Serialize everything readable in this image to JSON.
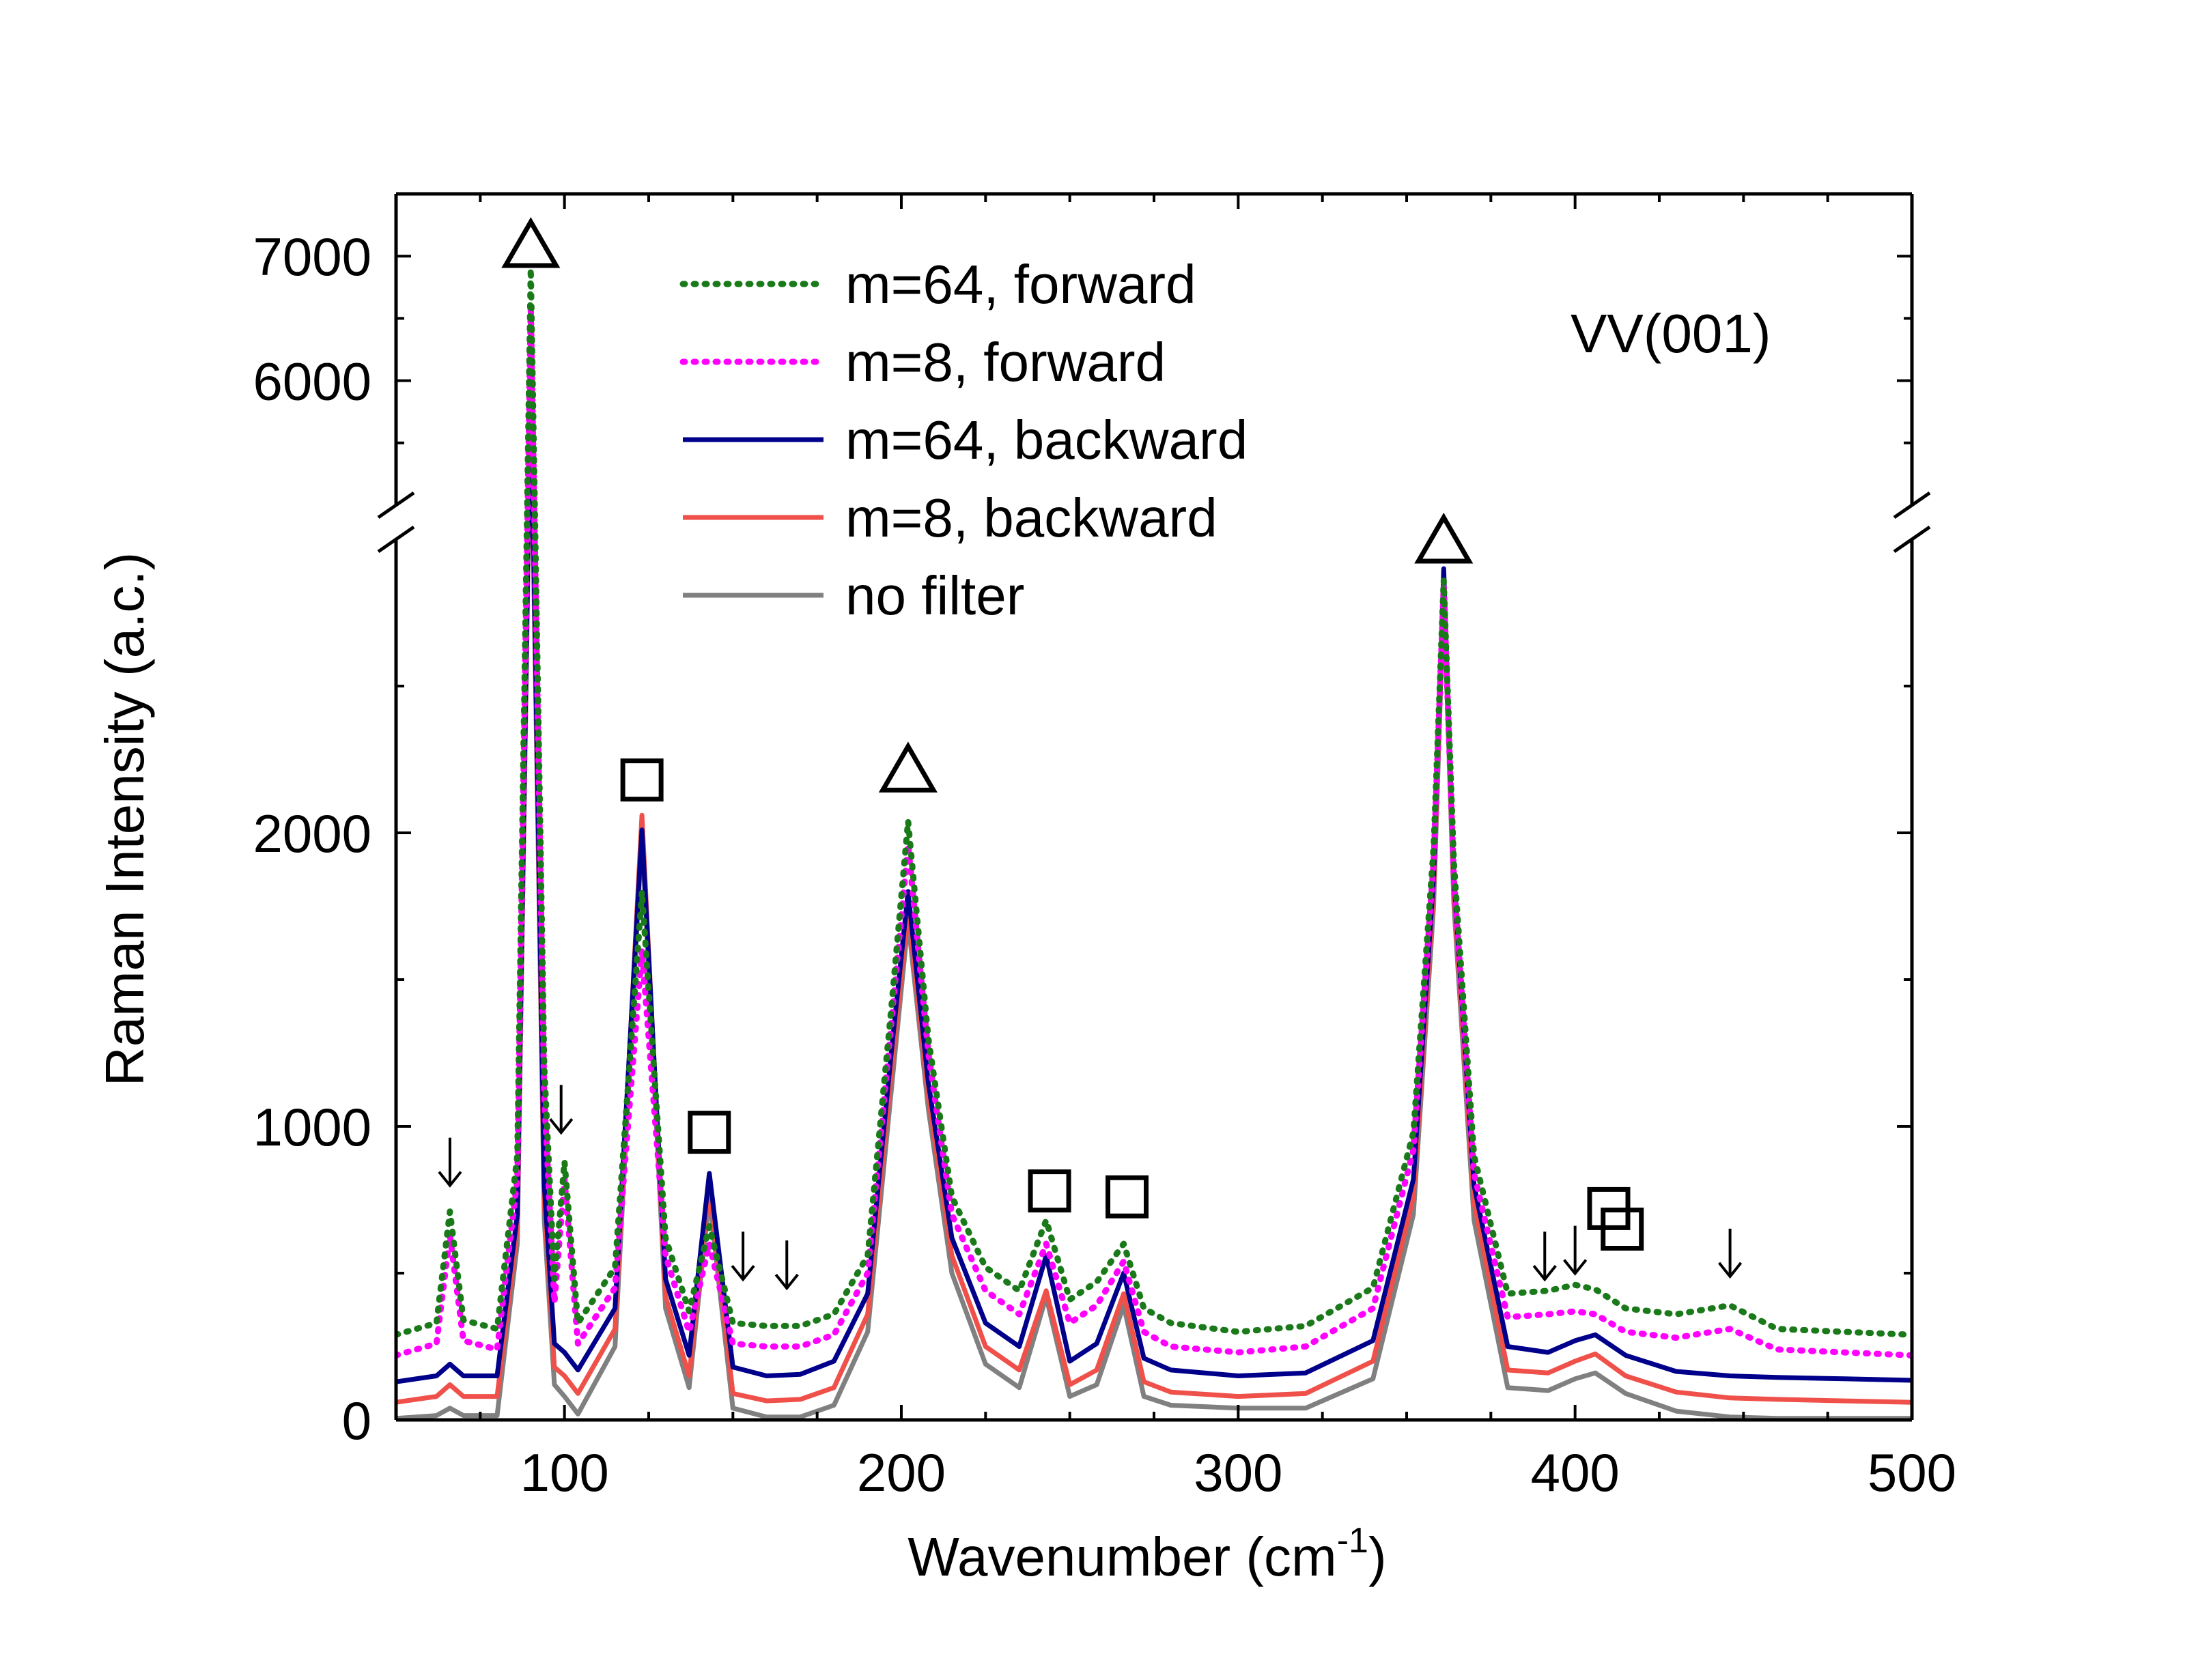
{
  "chart_data": {
    "type": "line",
    "title": "",
    "panel_label": "VV(001)",
    "xlabel": "Wavenumber (cm",
    "xlabel_sup": "-1",
    "xlabel_end": ")",
    "ylabel": "Raman Intensity (a.c.)",
    "xlim": [
      50,
      500
    ],
    "ylim_lower": [
      0,
      3000
    ],
    "ylim_upper": [
      5000,
      7500
    ],
    "axis_break": "between 3000 and 5000",
    "x_ticks": [
      "100",
      "200",
      "300",
      "400",
      "500"
    ],
    "y_ticks_lower": [
      "0",
      "1000",
      "2000"
    ],
    "y_ticks_upper": [
      "6000",
      "7000"
    ],
    "grid": false,
    "legend_position": "top-left",
    "series": [
      {
        "name": "m=64, forward",
        "color": "#1a7a1a",
        "style": "dotted",
        "offset": 290,
        "scale": 1.0,
        "x": [
          50,
          62,
          66,
          70,
          80,
          86,
          90,
          94,
          97,
          100,
          104,
          115,
          123,
          130,
          137,
          143,
          150,
          160,
          170,
          180,
          190,
          197,
          202,
          208,
          215,
          225,
          235,
          243,
          250,
          258,
          266,
          272,
          280,
          300,
          320,
          340,
          352,
          358,
          361,
          364,
          370,
          380,
          392,
          400,
          406,
          415,
          430,
          446,
          460,
          480,
          500
        ],
        "y": [
          290,
          330,
          710,
          340,
          310,
          900,
          6900,
          1200,
          480,
          880,
          330,
          520,
          1800,
          620,
          370,
          660,
          330,
          320,
          320,
          360,
          560,
          1400,
          2040,
          1300,
          760,
          520,
          440,
          680,
          410,
          470,
          600,
          380,
          330,
          300,
          320,
          450,
          980,
          1950,
          2860,
          1900,
          900,
          430,
          440,
          460,
          445,
          380,
          360,
          390,
          310,
          300,
          290
        ]
      },
      {
        "name": "m=8, forward",
        "color": "#ff00ff",
        "style": "dotted",
        "offset": 220,
        "x": [
          50,
          62,
          66,
          70,
          80,
          86,
          90,
          94,
          97,
          100,
          104,
          115,
          123,
          130,
          137,
          143,
          150,
          160,
          170,
          180,
          190,
          197,
          202,
          208,
          215,
          225,
          235,
          243,
          250,
          258,
          266,
          272,
          280,
          300,
          320,
          340,
          352,
          358,
          361,
          364,
          370,
          380,
          392,
          400,
          406,
          415,
          430,
          446,
          460,
          480,
          500
        ],
        "y": [
          220,
          260,
          630,
          270,
          240,
          820,
          6600,
          1100,
          400,
          820,
          260,
          450,
          1600,
          560,
          300,
          600,
          260,
          250,
          250,
          290,
          500,
          1350,
          1960,
          1250,
          700,
          440,
          360,
          600,
          330,
          390,
          540,
          300,
          250,
          230,
          250,
          380,
          920,
          1900,
          2840,
          1850,
          840,
          350,
          360,
          370,
          360,
          300,
          280,
          310,
          240,
          230,
          220
        ]
      },
      {
        "name": "m=64, backward",
        "color": "#00008b",
        "style": "solid",
        "offset": 130,
        "x": [
          50,
          62,
          66,
          70,
          80,
          86,
          90,
          94,
          97,
          100,
          104,
          115,
          123,
          130,
          137,
          143,
          150,
          160,
          170,
          180,
          190,
          197,
          202,
          208,
          215,
          225,
          235,
          243,
          250,
          258,
          266,
          272,
          280,
          300,
          320,
          340,
          352,
          358,
          361,
          364,
          370,
          380,
          392,
          400,
          406,
          415,
          430,
          446,
          460,
          480,
          500
        ],
        "y": [
          130,
          150,
          190,
          150,
          150,
          700,
          6050,
          800,
          260,
          230,
          170,
          380,
          2010,
          480,
          220,
          840,
          180,
          150,
          155,
          200,
          430,
          1250,
          1800,
          1150,
          620,
          330,
          250,
          560,
          200,
          260,
          500,
          210,
          170,
          150,
          160,
          270,
          820,
          1850,
          2900,
          1850,
          800,
          250,
          230,
          270,
          290,
          220,
          165,
          150,
          145,
          140,
          135
        ]
      },
      {
        "name": "m=8, backward",
        "color": "#f0504a",
        "style": "solid",
        "offset": 60,
        "x": [
          50,
          62,
          66,
          70,
          80,
          86,
          90,
          94,
          97,
          100,
          104,
          115,
          123,
          130,
          137,
          143,
          150,
          160,
          170,
          180,
          190,
          197,
          202,
          208,
          215,
          225,
          235,
          243,
          250,
          258,
          266,
          272,
          280,
          300,
          320,
          340,
          352,
          358,
          361,
          364,
          370,
          380,
          392,
          400,
          406,
          415,
          430,
          446,
          460,
          480,
          500
        ],
        "y": [
          60,
          80,
          120,
          80,
          80,
          650,
          6000,
          740,
          180,
          150,
          90,
          310,
          2060,
          420,
          150,
          800,
          90,
          65,
          70,
          110,
          360,
          1180,
          1740,
          1100,
          560,
          250,
          170,
          440,
          120,
          170,
          430,
          130,
          95,
          80,
          90,
          200,
          760,
          1800,
          2860,
          1800,
          740,
          170,
          160,
          200,
          225,
          150,
          95,
          75,
          70,
          65,
          60
        ]
      },
      {
        "name": "no filter",
        "color": "#808080",
        "style": "solid",
        "offset": 5,
        "x": [
          50,
          62,
          66,
          70,
          80,
          86,
          90,
          94,
          97,
          100,
          104,
          115,
          123,
          130,
          137,
          143,
          150,
          160,
          170,
          180,
          190,
          197,
          202,
          208,
          215,
          225,
          235,
          243,
          250,
          258,
          266,
          272,
          280,
          300,
          320,
          340,
          352,
          358,
          361,
          364,
          370,
          380,
          392,
          400,
          406,
          415,
          430,
          446,
          460,
          480,
          500
        ],
        "y": [
          5,
          15,
          40,
          15,
          15,
          600,
          5900,
          680,
          120,
          80,
          20,
          250,
          2000,
          380,
          110,
          760,
          40,
          10,
          10,
          50,
          300,
          1120,
          1700,
          1060,
          500,
          190,
          110,
          420,
          80,
          120,
          390,
          80,
          50,
          40,
          40,
          140,
          700,
          1750,
          2820,
          1760,
          680,
          110,
          100,
          140,
          160,
          90,
          30,
          10,
          5,
          5,
          5
        ]
      }
    ],
    "markers": [
      {
        "type": "triangle",
        "x": 90,
        "y": 7100
      },
      {
        "type": "square",
        "x": 123,
        "y": 2180
      },
      {
        "type": "square",
        "x": 143,
        "y": 980
      },
      {
        "type": "triangle",
        "x": 202,
        "y": 2220
      },
      {
        "type": "square",
        "x": 244,
        "y": 780
      },
      {
        "type": "square",
        "x": 267,
        "y": 760
      },
      {
        "type": "triangle",
        "x": 361,
        "y": 3000
      },
      {
        "type": "square",
        "x": 410,
        "y": 720
      },
      {
        "type": "square",
        "x": 414,
        "y": 650
      },
      {
        "type": "arrow",
        "x": 66,
        "y": 880
      },
      {
        "type": "arrow",
        "x": 99,
        "y": 1060
      },
      {
        "type": "arrow",
        "x": 153,
        "y": 560
      },
      {
        "type": "arrow",
        "x": 166,
        "y": 530
      },
      {
        "type": "arrow",
        "x": 391,
        "y": 560
      },
      {
        "type": "arrow",
        "x": 400,
        "y": 580
      },
      {
        "type": "arrow",
        "x": 446,
        "y": 570
      }
    ]
  }
}
